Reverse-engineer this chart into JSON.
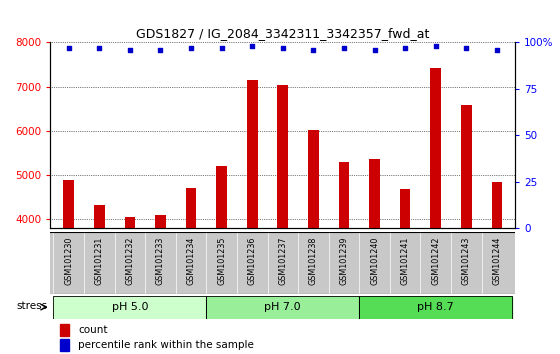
{
  "title": "GDS1827 / IG_2084_3342311_3342357_fwd_at",
  "samples": [
    "GSM101230",
    "GSM101231",
    "GSM101232",
    "GSM101233",
    "GSM101234",
    "GSM101235",
    "GSM101236",
    "GSM101237",
    "GSM101238",
    "GSM101239",
    "GSM101240",
    "GSM101241",
    "GSM101242",
    "GSM101243",
    "GSM101244"
  ],
  "counts": [
    4890,
    4330,
    4060,
    4110,
    4720,
    5210,
    7150,
    7040,
    6020,
    5290,
    5370,
    4680,
    7420,
    6590,
    4840
  ],
  "percentiles": [
    97,
    97,
    96,
    96,
    97,
    97,
    98,
    97,
    96,
    97,
    96,
    97,
    98,
    97,
    96
  ],
  "ylim_left": [
    3800,
    8000
  ],
  "ylim_right": [
    0,
    100
  ],
  "yticks_left": [
    4000,
    5000,
    6000,
    7000,
    8000
  ],
  "yticks_right": [
    0,
    25,
    50,
    75,
    100
  ],
  "groups": [
    {
      "label": "pH 5.0",
      "indices": [
        0,
        1,
        2,
        3,
        4
      ],
      "color": "#ccffcc"
    },
    {
      "label": "pH 7.0",
      "indices": [
        5,
        6,
        7,
        8,
        9
      ],
      "color": "#99ee99"
    },
    {
      "label": "pH 8.7",
      "indices": [
        10,
        11,
        12,
        13,
        14
      ],
      "color": "#55dd55"
    }
  ],
  "bar_color": "#cc0000",
  "dot_color": "#0000cc",
  "label_bg_color": "#c8c8c8",
  "plot_bg": "#ffffff",
  "stress_label": "stress",
  "legend_count_label": "count",
  "legend_pct_label": "percentile rank within the sample"
}
